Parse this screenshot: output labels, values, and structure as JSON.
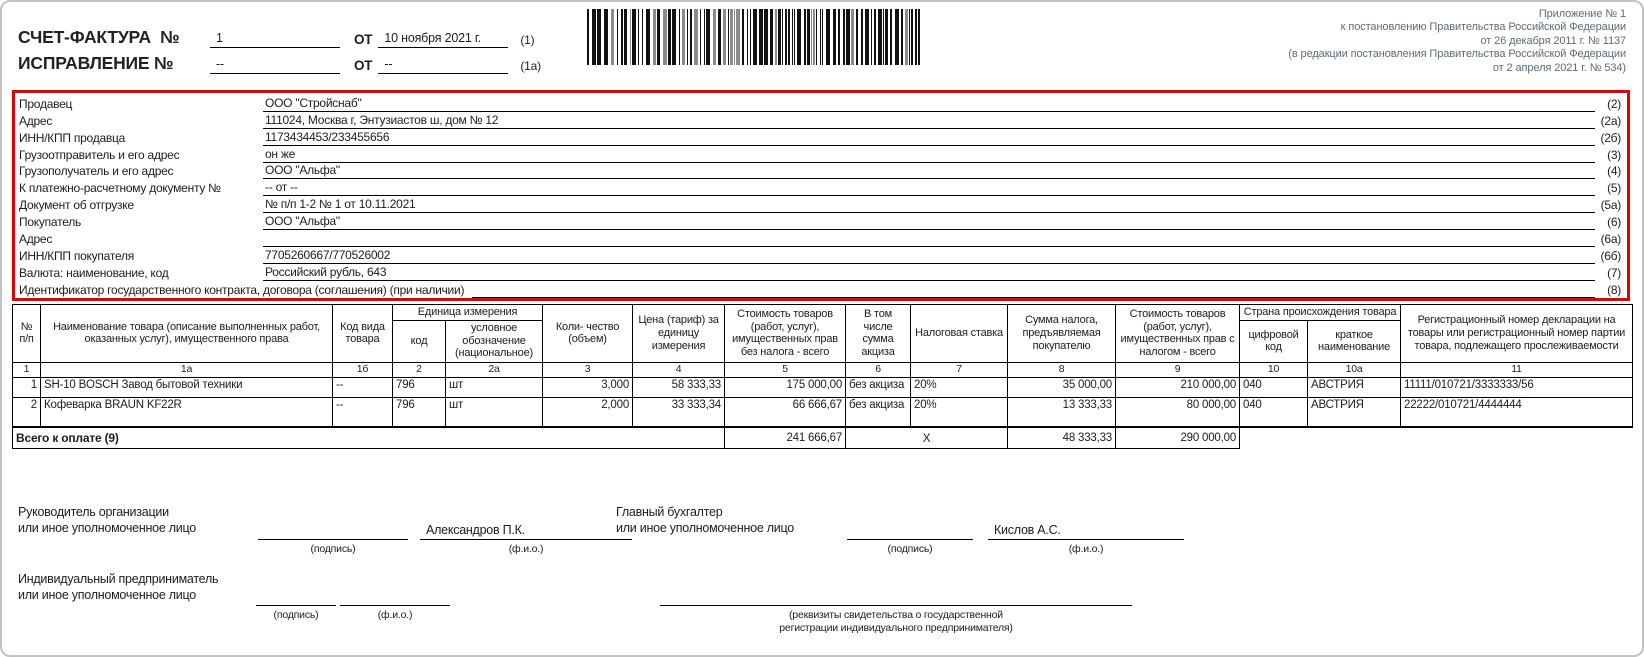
{
  "colors": {
    "accent_red": "#e20000",
    "legal_text": "#5d6b77",
    "bar_dark": "#111111",
    "bar_gray": "#8b8b8b"
  },
  "header": {
    "doc_title": "СЧЕТ-ФАКТУРА  №",
    "invoice_number": "1",
    "from_label": "ОТ",
    "invoice_date": "10 ноября 2021 г.",
    "ref1": "(1)",
    "correction_title": "ИСПРАВЛЕНИЕ №",
    "correction_number": "--",
    "correction_from_label": "ОТ",
    "correction_date": "--",
    "ref1a": "(1а)",
    "legal_lines": [
      "Приложение № 1",
      "к постановлению Правительства Российской Федерации",
      "от 26 декабря 2011 г. № 1137",
      "(в редакции постановления Правительства Российской Федерации",
      "от 2 апреля 2021 г. № 534)"
    ]
  },
  "parties": {
    "rows": [
      {
        "label": "Продавец",
        "value": "ООО \"Стройснаб\"",
        "ref": "(2)"
      },
      {
        "label": "Адрес",
        "value": "111024, Москва г, Энтузиастов ш, дом № 12",
        "ref": "(2а)"
      },
      {
        "label": "ИНН/КПП продавца",
        "value": "1173434453/233455656",
        "ref": "(2б)"
      },
      {
        "label": "Грузоотправитель и его адрес",
        "value": "он же",
        "ref": "(3)"
      },
      {
        "label": "Грузополучатель и его адрес",
        "value": "ООО \"Альфа\"",
        "ref": "(4)"
      },
      {
        "label": "К платежно-расчетному документу №",
        "value": "-- от --",
        "ref": "(5)"
      },
      {
        "label": "Документ об отгрузке",
        "value": "№ п/п 1-2 № 1 от 10.11.2021",
        "ref": "(5а)"
      },
      {
        "label": "Покупатель",
        "value": "ООО \"Альфа\"",
        "ref": "(6)"
      },
      {
        "label": "Адрес",
        "value": "",
        "ref": "(6а)"
      },
      {
        "label": "ИНН/КПП покупателя",
        "value": "7705260667/770526002",
        "ref": "(6б)"
      },
      {
        "label": "Валюта: наименование, код",
        "value": "Российский рубль, 643",
        "ref": "(7)"
      },
      {
        "label": "Идентификатор государственного контракта, договора (соглашения) (при наличии)",
        "value": "",
        "ref": "(8)",
        "wide_label": true
      }
    ]
  },
  "table": {
    "headers": {
      "npp": "№ п/п",
      "name": "Наименование товара (описание выполненных работ, оказанных услуг), имущественного права",
      "kind_code": "Код вида товара",
      "unit": "Единица измерения",
      "unit_code": "код",
      "unit_symbol": "условное обозначение (национальное)",
      "qty": "Коли- чество (объем)",
      "price": "Цена (тариф) за единицу измерения",
      "cost_without_tax": "Стоимость товаров (работ, услуг), имущественных прав без налога - всего",
      "excise": "В том числе сумма акциза",
      "tax_rate": "Налоговая ставка",
      "tax_amount": "Сумма налога, предъявляемая покупателю",
      "cost_with_tax": "Стоимость товаров (работ, услуг), имущественных прав с налогом - всего",
      "country": "Страна происхождения товара",
      "country_code": "цифровой код",
      "country_name": "краткое наименование",
      "reg_number": "Регистрационный номер декларации на товары или регистрационный номер партии товара, подлежащего прослеживаемости"
    },
    "column_numbers": [
      "1",
      "1а",
      "1б",
      "2",
      "2а",
      "3",
      "4",
      "5",
      "6",
      "7",
      "8",
      "9",
      "10",
      "10а",
      "11"
    ],
    "rows": [
      [
        "1",
        "SH-10 BOSCH Завод бытовой техники",
        "--",
        "796",
        "шт",
        "3,000",
        "58 333,33",
        "175 000,00",
        "без акциза",
        "20%",
        "35 000,00",
        "210 000,00",
        "040",
        "АВСТРИЯ",
        "11111/010721/3333333/56"
      ],
      [
        "2",
        "Кофеварка BRAUN KF22R",
        "--",
        "796",
        "шт",
        "2,000",
        "33 333,34",
        "66 666,67",
        "без акциза",
        "20%",
        "13 333,33",
        "80 000,00",
        "040",
        "АВСТРИЯ",
        "22222/010721/4444444"
      ]
    ],
    "total": {
      "label": "Всего к оплате (9)",
      "cost_without_tax": "241 666,67",
      "x_mark": "X",
      "tax_amount": "48 333,33",
      "cost_with_tax": "290 000,00"
    }
  },
  "signatures": {
    "director_label": [
      "Руководитель организации",
      "или иное уполномоченное лицо"
    ],
    "director_fio": "Александров П.К.",
    "accountant_label": [
      "Главный бухгалтер",
      "или иное уполномоченное лицо"
    ],
    "accountant_fio": "Кислов А.С.",
    "entrepreneur_label": [
      "Индивидуальный предприниматель",
      "или иное уполномоченное лицо"
    ],
    "sign_caption": "(подпись)",
    "fio_caption": "(ф.и.о.)",
    "requisites_caption": [
      "(реквизиты свидетельства о государственной",
      "регистрации индивидуального предпринимателя)"
    ]
  }
}
